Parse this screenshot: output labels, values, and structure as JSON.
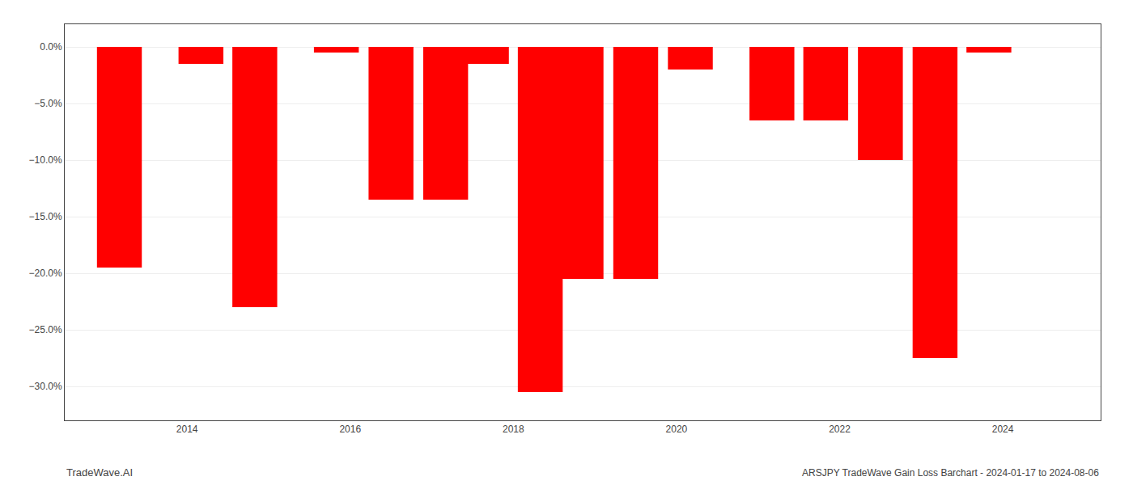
{
  "chart_data": {
    "type": "bar",
    "x": [
      2013.17,
      2014.17,
      2014.83,
      2015.83,
      2016.5,
      2017.17,
      2017.67,
      2018.33,
      2018.83,
      2019.5,
      2020.17,
      2021.17,
      2021.83,
      2022.5,
      2023.17,
      2023.83
    ],
    "values": [
      -19.5,
      -1.5,
      -23.0,
      -0.5,
      -13.5,
      -13.5,
      -1.5,
      -30.5,
      -20.5,
      -20.5,
      -2.0,
      -6.5,
      -6.5,
      -10.0,
      -27.5,
      -0.5
    ],
    "color": "#ff0000",
    "xlim": [
      2012.5,
      2025.2
    ],
    "xticks": [
      2014,
      2016,
      2018,
      2020,
      2022,
      2024
    ],
    "ylim": [
      -33,
      2.0
    ],
    "yticks": [
      {
        "value": 0.0,
        "label": "0.0%"
      },
      {
        "value": -5.0,
        "label": "−5.0%"
      },
      {
        "value": -10.0,
        "label": "−10.0%"
      },
      {
        "value": -15.0,
        "label": "−15.0%"
      },
      {
        "value": -20.0,
        "label": "−20.0%"
      },
      {
        "value": -25.0,
        "label": "−25.0%"
      },
      {
        "value": -30.0,
        "label": "−30.0%"
      }
    ],
    "grid": true,
    "annotations": [
      "TradeWave.AI",
      "ARSJPY TradeWave Gain Loss Barchart - 2024-01-17 to 2024-08-06"
    ]
  }
}
